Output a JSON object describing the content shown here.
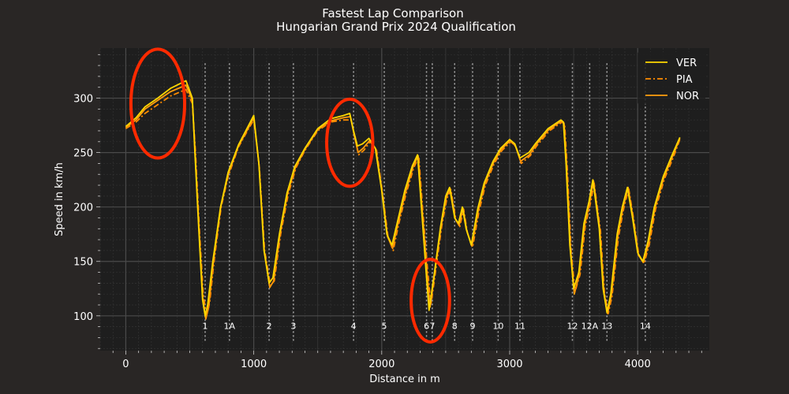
{
  "chart_data": {
    "type": "line",
    "title": "Fastest Lap Comparison",
    "subtitle": "Hungarian Grand Prix 2024 Qualification",
    "xlabel": "Distance in m",
    "ylabel": "Speed in km/h",
    "xlim": [
      -200,
      4560
    ],
    "ylim": [
      68,
      346
    ],
    "x_ticks": [
      0,
      1000,
      2000,
      3000,
      4000
    ],
    "y_ticks": [
      100,
      150,
      200,
      250,
      300
    ],
    "grid": true,
    "legend_position": "top-right",
    "series": [
      {
        "name": "VER",
        "color": "#FFD700",
        "dash": "solid",
        "points": [
          [
            0,
            274
          ],
          [
            80,
            282
          ],
          [
            150,
            292
          ],
          [
            250,
            300
          ],
          [
            350,
            309
          ],
          [
            470,
            316
          ],
          [
            520,
            300
          ],
          [
            540,
            250
          ],
          [
            570,
            180
          ],
          [
            600,
            115
          ],
          [
            620,
            100
          ],
          [
            640,
            110
          ],
          [
            680,
            150
          ],
          [
            740,
            200
          ],
          [
            800,
            232
          ],
          [
            880,
            257
          ],
          [
            960,
            275
          ],
          [
            1000,
            284
          ],
          [
            1040,
            240
          ],
          [
            1080,
            160
          ],
          [
            1120,
            130
          ],
          [
            1150,
            135
          ],
          [
            1200,
            175
          ],
          [
            1260,
            213
          ],
          [
            1320,
            237
          ],
          [
            1400,
            254
          ],
          [
            1500,
            272
          ],
          [
            1600,
            281
          ],
          [
            1700,
            284
          ],
          [
            1750,
            286
          ],
          [
            1780,
            270
          ],
          [
            1810,
            256
          ],
          [
            1850,
            258
          ],
          [
            1900,
            263
          ],
          [
            1950,
            254
          ],
          [
            2000,
            215
          ],
          [
            2040,
            175
          ],
          [
            2080,
            165
          ],
          [
            2120,
            185
          ],
          [
            2180,
            215
          ],
          [
            2240,
            238
          ],
          [
            2280,
            248
          ],
          [
            2310,
            200
          ],
          [
            2350,
            135
          ],
          [
            2370,
            105
          ],
          [
            2410,
            138
          ],
          [
            2460,
            182
          ],
          [
            2500,
            210
          ],
          [
            2530,
            218
          ],
          [
            2570,
            190
          ],
          [
            2600,
            185
          ],
          [
            2630,
            200
          ],
          [
            2660,
            180
          ],
          [
            2700,
            165
          ],
          [
            2750,
            198
          ],
          [
            2800,
            222
          ],
          [
            2870,
            242
          ],
          [
            2930,
            254
          ],
          [
            3000,
            262
          ],
          [
            3040,
            258
          ],
          [
            3080,
            245
          ],
          [
            3150,
            250
          ],
          [
            3200,
            258
          ],
          [
            3300,
            272
          ],
          [
            3400,
            280
          ],
          [
            3420,
            278
          ],
          [
            3440,
            240
          ],
          [
            3470,
            165
          ],
          [
            3500,
            125
          ],
          [
            3540,
            140
          ],
          [
            3580,
            185
          ],
          [
            3620,
            205
          ],
          [
            3650,
            225
          ],
          [
            3700,
            180
          ],
          [
            3730,
            125
          ],
          [
            3760,
            103
          ],
          [
            3790,
            120
          ],
          [
            3840,
            175
          ],
          [
            3880,
            200
          ],
          [
            3920,
            218
          ],
          [
            3960,
            190
          ],
          [
            4000,
            158
          ],
          [
            4040,
            150
          ],
          [
            4080,
            168
          ],
          [
            4130,
            200
          ],
          [
            4200,
            228
          ],
          [
            4270,
            248
          ],
          [
            4330,
            264
          ]
        ]
      },
      {
        "name": "PIA",
        "color": "#FF8C00",
        "dash": "dashdot",
        "points": [
          [
            0,
            272
          ],
          [
            80,
            278
          ],
          [
            150,
            286
          ],
          [
            250,
            294
          ],
          [
            350,
            302
          ],
          [
            470,
            308
          ],
          [
            520,
            295
          ],
          [
            545,
            250
          ],
          [
            575,
            180
          ],
          [
            605,
            120
          ],
          [
            630,
            100
          ],
          [
            655,
            112
          ],
          [
            690,
            150
          ],
          [
            745,
            200
          ],
          [
            800,
            228
          ],
          [
            880,
            255
          ],
          [
            960,
            272
          ],
          [
            1000,
            280
          ],
          [
            1045,
            235
          ],
          [
            1085,
            160
          ],
          [
            1130,
            128
          ],
          [
            1160,
            132
          ],
          [
            1210,
            175
          ],
          [
            1270,
            212
          ],
          [
            1330,
            236
          ],
          [
            1400,
            252
          ],
          [
            1500,
            270
          ],
          [
            1600,
            278
          ],
          [
            1700,
            280
          ],
          [
            1760,
            280
          ],
          [
            1790,
            265
          ],
          [
            1820,
            248
          ],
          [
            1860,
            252
          ],
          [
            1910,
            260
          ],
          [
            1960,
            252
          ],
          [
            2010,
            210
          ],
          [
            2050,
            172
          ],
          [
            2090,
            160
          ],
          [
            2130,
            183
          ],
          [
            2190,
            212
          ],
          [
            2250,
            236
          ],
          [
            2290,
            246
          ],
          [
            2320,
            198
          ],
          [
            2360,
            140
          ],
          [
            2385,
            110
          ],
          [
            2420,
            140
          ],
          [
            2470,
            183
          ],
          [
            2510,
            208
          ],
          [
            2540,
            216
          ],
          [
            2580,
            188
          ],
          [
            2610,
            182
          ],
          [
            2640,
            198
          ],
          [
            2670,
            176
          ],
          [
            2710,
            163
          ],
          [
            2760,
            196
          ],
          [
            2810,
            220
          ],
          [
            2880,
            240
          ],
          [
            2940,
            252
          ],
          [
            3010,
            260
          ],
          [
            3050,
            255
          ],
          [
            3090,
            240
          ],
          [
            3160,
            247
          ],
          [
            3210,
            256
          ],
          [
            3310,
            270
          ],
          [
            3410,
            278
          ],
          [
            3430,
            276
          ],
          [
            3450,
            235
          ],
          [
            3480,
            160
          ],
          [
            3510,
            122
          ],
          [
            3550,
            138
          ],
          [
            3590,
            182
          ],
          [
            3630,
            203
          ],
          [
            3660,
            222
          ],
          [
            3710,
            178
          ],
          [
            3740,
            122
          ],
          [
            3770,
            102
          ],
          [
            3800,
            118
          ],
          [
            3850,
            172
          ],
          [
            3890,
            198
          ],
          [
            3930,
            217
          ],
          [
            3970,
            188
          ],
          [
            4010,
            155
          ],
          [
            4050,
            148
          ],
          [
            4090,
            165
          ],
          [
            4140,
            198
          ],
          [
            4210,
            226
          ],
          [
            4280,
            246
          ],
          [
            4330,
            262
          ]
        ]
      },
      {
        "name": "NOR",
        "color": "#FF9E0F",
        "dash": "solid",
        "points": [
          [
            0,
            273
          ],
          [
            80,
            280
          ],
          [
            150,
            290
          ],
          [
            250,
            298
          ],
          [
            350,
            306
          ],
          [
            470,
            312
          ],
          [
            520,
            298
          ],
          [
            542,
            250
          ],
          [
            572,
            180
          ],
          [
            602,
            115
          ],
          [
            625,
            97
          ],
          [
            648,
            108
          ],
          [
            685,
            150
          ],
          [
            742,
            200
          ],
          [
            800,
            230
          ],
          [
            880,
            256
          ],
          [
            960,
            273
          ],
          [
            1000,
            282
          ],
          [
            1042,
            238
          ],
          [
            1082,
            160
          ],
          [
            1125,
            126
          ],
          [
            1155,
            132
          ],
          [
            1205,
            175
          ],
          [
            1265,
            213
          ],
          [
            1325,
            236
          ],
          [
            1400,
            253
          ],
          [
            1500,
            271
          ],
          [
            1600,
            279
          ],
          [
            1700,
            282
          ],
          [
            1755,
            283
          ],
          [
            1785,
            266
          ],
          [
            1815,
            250
          ],
          [
            1855,
            254
          ],
          [
            1905,
            261
          ],
          [
            1955,
            253
          ],
          [
            2005,
            212
          ],
          [
            2045,
            173
          ],
          [
            2085,
            162
          ],
          [
            2125,
            184
          ],
          [
            2185,
            213
          ],
          [
            2245,
            237
          ],
          [
            2285,
            247
          ],
          [
            2315,
            199
          ],
          [
            2355,
            138
          ],
          [
            2378,
            108
          ],
          [
            2415,
            140
          ],
          [
            2465,
            183
          ],
          [
            2505,
            209
          ],
          [
            2535,
            217
          ],
          [
            2575,
            189
          ],
          [
            2605,
            183
          ],
          [
            2635,
            199
          ],
          [
            2665,
            178
          ],
          [
            2705,
            164
          ],
          [
            2755,
            197
          ],
          [
            2805,
            221
          ],
          [
            2875,
            241
          ],
          [
            2935,
            253
          ],
          [
            3005,
            261
          ],
          [
            3045,
            256
          ],
          [
            3085,
            242
          ],
          [
            3155,
            248
          ],
          [
            3205,
            257
          ],
          [
            3305,
            271
          ],
          [
            3405,
            279
          ],
          [
            3425,
            277
          ],
          [
            3445,
            237
          ],
          [
            3475,
            162
          ],
          [
            3505,
            120
          ],
          [
            3545,
            139
          ],
          [
            3585,
            183
          ],
          [
            3625,
            204
          ],
          [
            3655,
            224
          ],
          [
            3705,
            179
          ],
          [
            3735,
            123
          ],
          [
            3765,
            102
          ],
          [
            3795,
            119
          ],
          [
            3845,
            173
          ],
          [
            3885,
            199
          ],
          [
            3925,
            218
          ],
          [
            3965,
            189
          ],
          [
            4005,
            156
          ],
          [
            4045,
            149
          ],
          [
            4085,
            166
          ],
          [
            4135,
            199
          ],
          [
            4205,
            227
          ],
          [
            4275,
            247
          ],
          [
            4330,
            263
          ]
        ]
      }
    ],
    "corners": [
      {
        "label": "1",
        "x": 620
      },
      {
        "label": "1A",
        "x": 810
      },
      {
        "label": "2",
        "x": 1120
      },
      {
        "label": "3",
        "x": 1310
      },
      {
        "label": "4",
        "x": 1780
      },
      {
        "label": "5",
        "x": 2020
      },
      {
        "label": "6",
        "x": 2350
      },
      {
        "label": "7",
        "x": 2395
      },
      {
        "label": "8",
        "x": 2570
      },
      {
        "label": "9",
        "x": 2710
      },
      {
        "label": "10",
        "x": 2910
      },
      {
        "label": "11",
        "x": 3080
      },
      {
        "label": "12",
        "x": 3490
      },
      {
        "label": "12A",
        "x": 3625
      },
      {
        "label": "13",
        "x": 3760
      },
      {
        "label": "14",
        "x": 4060
      }
    ],
    "annotations": [
      {
        "shape": "circle",
        "cx": 250,
        "cy": 295,
        "rx": 420,
        "ry": 50
      },
      {
        "shape": "circle",
        "cx": 1750,
        "cy": 259,
        "rx": 360,
        "ry": 40
      },
      {
        "shape": "circle",
        "cx": 2380,
        "cy": 114,
        "rx": 300,
        "ry": 38
      }
    ],
    "colors": {
      "background": "#292625",
      "plot_background": "#1e1e1e",
      "grid_major": "#4a4a4a",
      "grid_minor": "#333333",
      "annotation": "#ff2a00",
      "corner_line": "#aaaaaa"
    }
  }
}
